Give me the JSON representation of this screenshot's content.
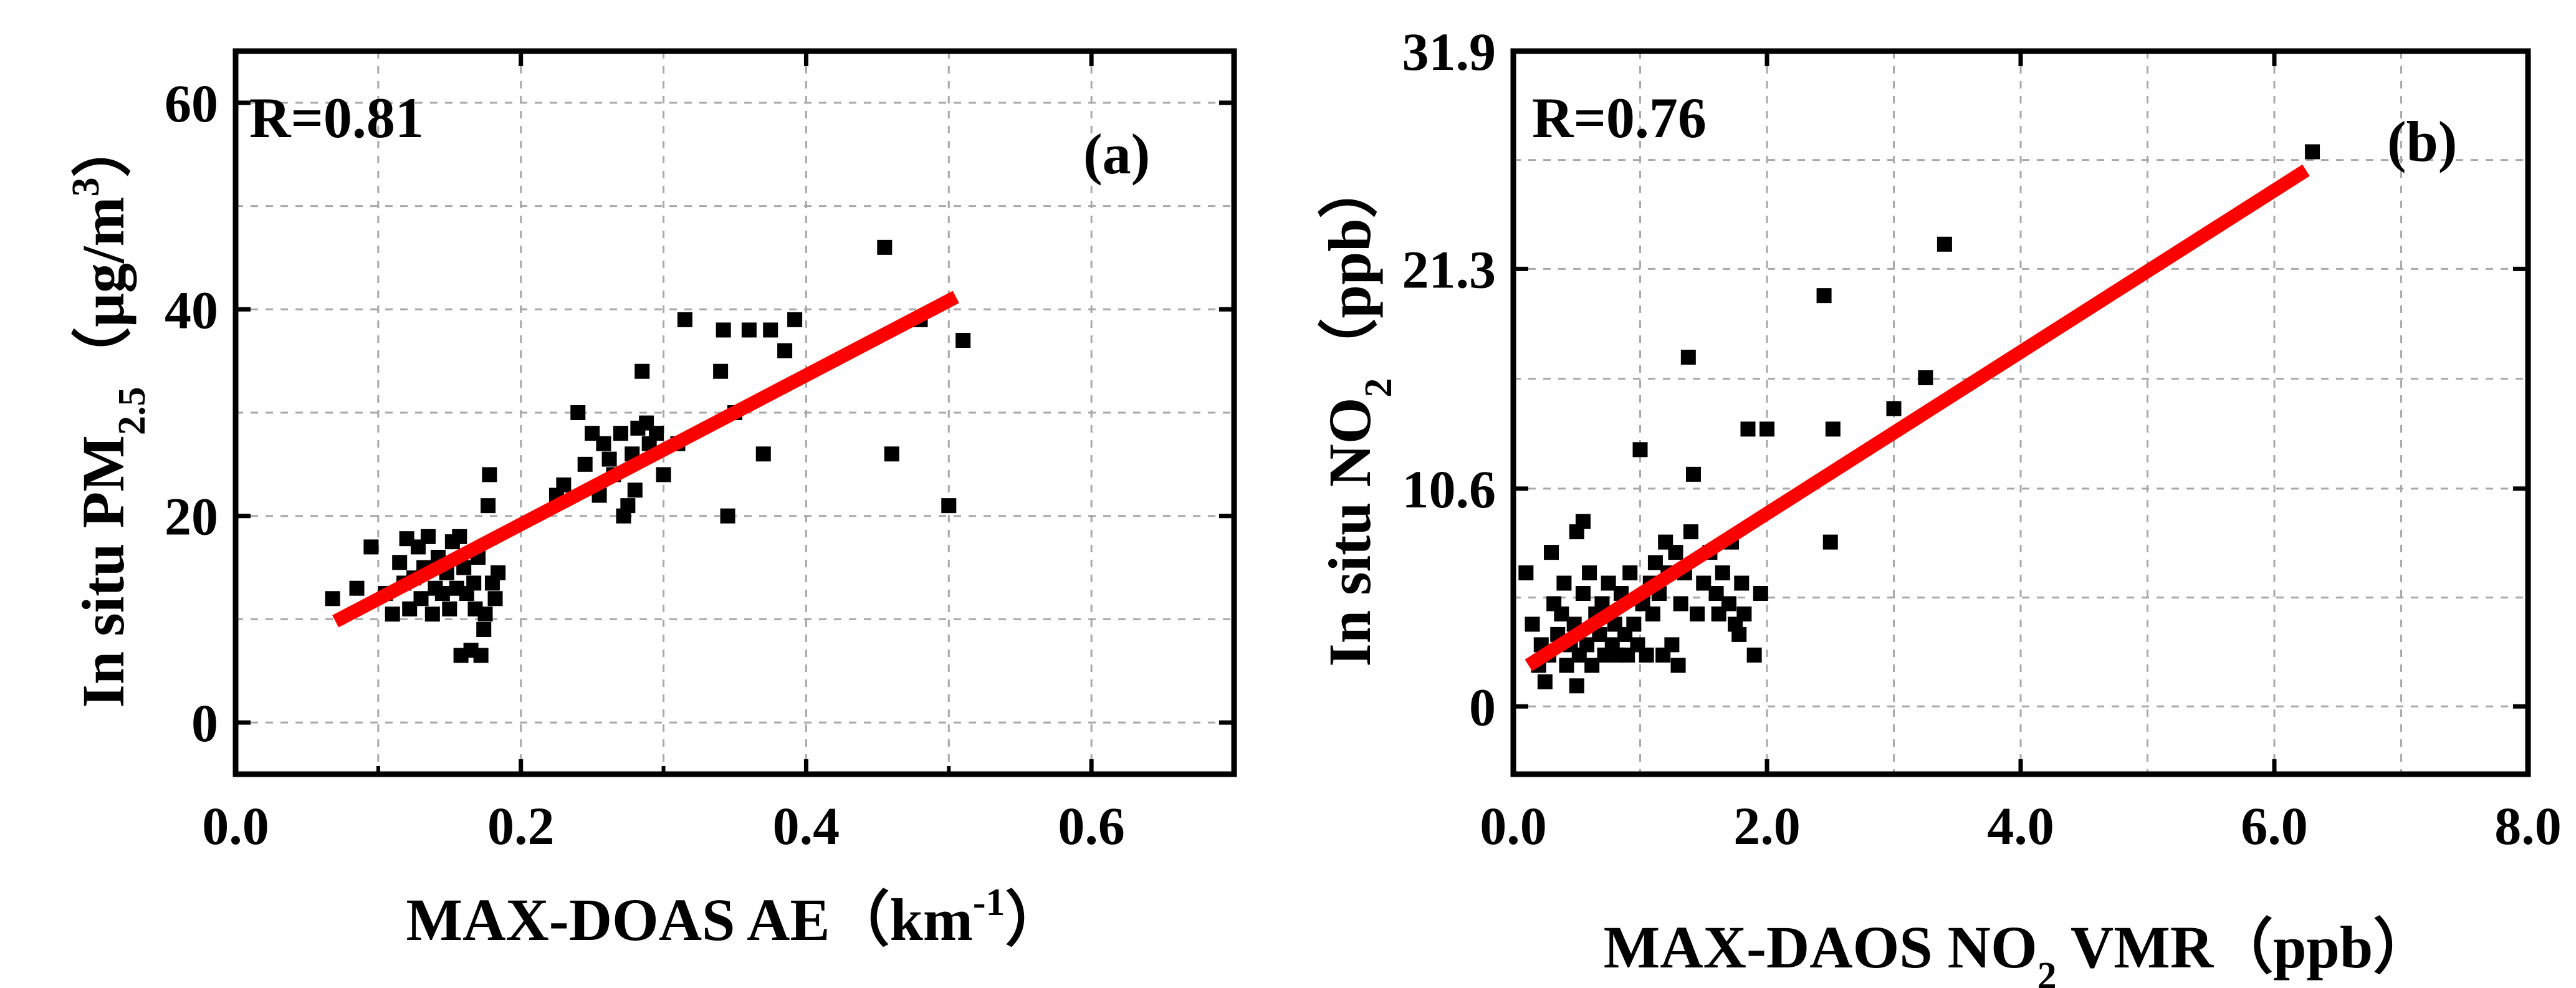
{
  "chart_data": [
    {
      "type": "scatter",
      "panel_label": "(a)",
      "r_text": "R=0.81",
      "xlabel": {
        "main": "MAX-DOAS AE（km",
        "sup": "-1",
        "tail": "）"
      },
      "ylabel": {
        "main": "In situ PM",
        "sub": "2.5",
        "tail": "（μg/m",
        "sup": "3",
        "tail2": "）"
      },
      "xlim": [
        0.0,
        0.7
      ],
      "ylim": [
        -5,
        65
      ],
      "xticks": [
        {
          "v": 0.0,
          "label": "0.0"
        },
        {
          "v": 0.2,
          "label": "0.2"
        },
        {
          "v": 0.4,
          "label": "0.4"
        },
        {
          "v": 0.6,
          "label": "0.6"
        }
      ],
      "yticks": [
        {
          "v": 0,
          "label": "0"
        },
        {
          "v": 20,
          "label": "20"
        },
        {
          "v": 40,
          "label": "40"
        },
        {
          "v": 60,
          "label": "60"
        }
      ],
      "xgrid": [
        0.1,
        0.2,
        0.3,
        0.4,
        0.5,
        0.6
      ],
      "ygrid": [
        0,
        10,
        20,
        30,
        40,
        50,
        60
      ],
      "fit": {
        "x": [
          0.07,
          0.505
        ],
        "y": [
          9.8,
          41.2
        ],
        "color": "#ff0000"
      },
      "points": [
        [
          0.068,
          12.0
        ],
        [
          0.085,
          13.0
        ],
        [
          0.095,
          17.0
        ],
        [
          0.105,
          12.5
        ],
        [
          0.11,
          10.5
        ],
        [
          0.115,
          15.5
        ],
        [
          0.118,
          13.5
        ],
        [
          0.12,
          17.8
        ],
        [
          0.122,
          11.0
        ],
        [
          0.125,
          14.0
        ],
        [
          0.128,
          17.0
        ],
        [
          0.13,
          12.0
        ],
        [
          0.132,
          15.0
        ],
        [
          0.135,
          18.0
        ],
        [
          0.138,
          10.5
        ],
        [
          0.14,
          13.0
        ],
        [
          0.142,
          16.0
        ],
        [
          0.145,
          12.5
        ],
        [
          0.148,
          14.5
        ],
        [
          0.15,
          11.0
        ],
        [
          0.152,
          17.5
        ],
        [
          0.155,
          13.0
        ],
        [
          0.157,
          18.0
        ],
        [
          0.158,
          6.5
        ],
        [
          0.16,
          15.0
        ],
        [
          0.162,
          12.5
        ],
        [
          0.165,
          7.0
        ],
        [
          0.167,
          13.5
        ],
        [
          0.168,
          11.0
        ],
        [
          0.17,
          16.0
        ],
        [
          0.172,
          6.5
        ],
        [
          0.174,
          9.0
        ],
        [
          0.175,
          10.5
        ],
        [
          0.177,
          21.0
        ],
        [
          0.178,
          24.0
        ],
        [
          0.18,
          13.5
        ],
        [
          0.182,
          12.0
        ],
        [
          0.184,
          14.5
        ],
        [
          0.225,
          22.0
        ],
        [
          0.23,
          23.0
        ],
        [
          0.24,
          30.0
        ],
        [
          0.245,
          25.0
        ],
        [
          0.25,
          28.0
        ],
        [
          0.255,
          22.0
        ],
        [
          0.258,
          27.0
        ],
        [
          0.262,
          25.5
        ],
        [
          0.265,
          24.0
        ],
        [
          0.27,
          28.0
        ],
        [
          0.272,
          20.0
        ],
        [
          0.275,
          21.0
        ],
        [
          0.278,
          26.0
        ],
        [
          0.28,
          22.5
        ],
        [
          0.282,
          28.5
        ],
        [
          0.285,
          34.0
        ],
        [
          0.288,
          29.0
        ],
        [
          0.29,
          27.0
        ],
        [
          0.295,
          28.0
        ],
        [
          0.3,
          24.0
        ],
        [
          0.31,
          27.0
        ],
        [
          0.315,
          39.0
        ],
        [
          0.34,
          34.0
        ],
        [
          0.342,
          38.0
        ],
        [
          0.345,
          20.0
        ],
        [
          0.35,
          30.0
        ],
        [
          0.36,
          38.0
        ],
        [
          0.37,
          26.0
        ],
        [
          0.375,
          38.0
        ],
        [
          0.385,
          36.0
        ],
        [
          0.392,
          39.0
        ],
        [
          0.455,
          46.0
        ],
        [
          0.46,
          26.0
        ],
        [
          0.48,
          39.0
        ],
        [
          0.5,
          21.0
        ],
        [
          0.51,
          37.0
        ]
      ]
    },
    {
      "type": "scatter",
      "panel_label": "(b)",
      "r_text": "R=0.76",
      "xlabel": {
        "main": "MAX-DAOS NO",
        "sub": "2",
        "tail": " VMR（ppb）"
      },
      "ylabel": {
        "main": "In situ NO",
        "sub": "2",
        "tail": "（ppb）"
      },
      "xlim": [
        0.0,
        8.0
      ],
      "ylim": [
        -3.3,
        31.9
      ],
      "xticks": [
        {
          "v": 0.0,
          "label": "0.0"
        },
        {
          "v": 2.0,
          "label": "2.0"
        },
        {
          "v": 4.0,
          "label": "4.0"
        },
        {
          "v": 6.0,
          "label": "6.0"
        },
        {
          "v": 8.0,
          "label": "8.0"
        }
      ],
      "yticks": [
        {
          "v": 0,
          "label": "0"
        },
        {
          "v": 10.6,
          "label": "10.6"
        },
        {
          "v": 21.3,
          "label": "21.3"
        },
        {
          "v": 31.9,
          "label": "31.9"
        }
      ],
      "xgrid": [
        1,
        2,
        3,
        4,
        5,
        6,
        7
      ],
      "ygrid": [
        0,
        5.3,
        10.6,
        15.95,
        21.3,
        26.6
      ],
      "fit": {
        "x": [
          0.12,
          6.25
        ],
        "y": [
          2.0,
          26.1
        ],
        "color": "#ff0000"
      },
      "points": [
        [
          0.1,
          6.5
        ],
        [
          0.15,
          4.0
        ],
        [
          0.2,
          2.0
        ],
        [
          0.22,
          3.0
        ],
        [
          0.25,
          1.2
        ],
        [
          0.28,
          2.5
        ],
        [
          0.3,
          7.5
        ],
        [
          0.32,
          5.0
        ],
        [
          0.35,
          3.5
        ],
        [
          0.38,
          4.5
        ],
        [
          0.4,
          6.0
        ],
        [
          0.42,
          2.0
        ],
        [
          0.45,
          3.0
        ],
        [
          0.48,
          4.0
        ],
        [
          0.5,
          1.0
        ],
        [
          0.5,
          8.5
        ],
        [
          0.52,
          2.5
        ],
        [
          0.55,
          5.5
        ],
        [
          0.55,
          9.0
        ],
        [
          0.58,
          3.0
        ],
        [
          0.6,
          6.5
        ],
        [
          0.62,
          2.0
        ],
        [
          0.65,
          4.5
        ],
        [
          0.68,
          3.5
        ],
        [
          0.7,
          5.0
        ],
        [
          0.72,
          2.5
        ],
        [
          0.75,
          6.0
        ],
        [
          0.78,
          3.0
        ],
        [
          0.8,
          4.0
        ],
        [
          0.82,
          2.5
        ],
        [
          0.85,
          5.5
        ],
        [
          0.88,
          3.5
        ],
        [
          0.9,
          2.5
        ],
        [
          0.92,
          6.5
        ],
        [
          0.95,
          4.0
        ],
        [
          0.98,
          3.0
        ],
        [
          1.0,
          12.5
        ],
        [
          1.02,
          5.0
        ],
        [
          1.05,
          2.5
        ],
        [
          1.08,
          6.0
        ],
        [
          1.1,
          4.5
        ],
        [
          1.12,
          7.0
        ],
        [
          1.15,
          5.5
        ],
        [
          1.18,
          2.5
        ],
        [
          1.2,
          8.0
        ],
        [
          1.22,
          6.5
        ],
        [
          1.25,
          3.0
        ],
        [
          1.28,
          7.5
        ],
        [
          1.3,
          2.0
        ],
        [
          1.32,
          5.0
        ],
        [
          1.35,
          6.5
        ],
        [
          1.38,
          17.0
        ],
        [
          1.4,
          8.5
        ],
        [
          1.42,
          11.3
        ],
        [
          1.45,
          4.5
        ],
        [
          1.5,
          6.0
        ],
        [
          1.55,
          7.5
        ],
        [
          1.6,
          5.5
        ],
        [
          1.62,
          4.5
        ],
        [
          1.65,
          6.5
        ],
        [
          1.7,
          5.0
        ],
        [
          1.72,
          8.0
        ],
        [
          1.75,
          4.0
        ],
        [
          1.78,
          3.5
        ],
        [
          1.8,
          6.0
        ],
        [
          1.82,
          4.5
        ],
        [
          1.85,
          13.5
        ],
        [
          1.9,
          2.5
        ],
        [
          1.95,
          5.5
        ],
        [
          2.0,
          13.5
        ],
        [
          2.45,
          20.0
        ],
        [
          2.5,
          8.0
        ],
        [
          2.52,
          13.5
        ],
        [
          3.0,
          14.5
        ],
        [
          3.25,
          16.0
        ],
        [
          3.4,
          22.5
        ],
        [
          6.3,
          27.0
        ]
      ]
    }
  ]
}
